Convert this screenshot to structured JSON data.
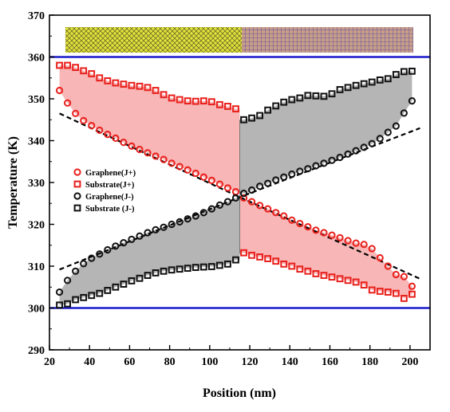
{
  "chart_data": {
    "type": "scatter",
    "xlabel": "Position (nm)",
    "ylabel": "Temperature (K)",
    "xlim": [
      20,
      210
    ],
    "ylim": [
      290,
      370
    ],
    "xticks": [
      20,
      40,
      60,
      80,
      100,
      120,
      140,
      160,
      180,
      200
    ],
    "yticks": [
      290,
      300,
      310,
      320,
      330,
      340,
      350,
      360,
      370
    ],
    "interface_x": 115,
    "reservoir_lines": {
      "hot": 360,
      "cold": 300,
      "color": "#1a1acc"
    },
    "legend_position": "center-left",
    "series": [
      {
        "name": "Graphene(J+)",
        "marker": "circle",
        "color": "#e8201c",
        "x": [
          25,
          29,
          33,
          37,
          41,
          45,
          49,
          53,
          57,
          61,
          65,
          69,
          73,
          77,
          81,
          85,
          89,
          93,
          97,
          101,
          105,
          109,
          113,
          117,
          121,
          125,
          129,
          133,
          137,
          141,
          145,
          149,
          153,
          157,
          161,
          165,
          169,
          173,
          177,
          181,
          185,
          189,
          193,
          197,
          201
        ],
        "y": [
          352,
          349,
          346.5,
          344.8,
          343.6,
          342.5,
          341.5,
          340.6,
          339.6,
          338.7,
          337.9,
          337.1,
          336.3,
          335.5,
          334.6,
          333.8,
          333,
          332.2,
          331.3,
          330.5,
          329.6,
          328.7,
          327.8,
          326.3,
          325.4,
          324.5,
          323.7,
          322.8,
          322,
          321,
          320.2,
          319.4,
          318.6,
          318,
          317.4,
          316.8,
          316.1,
          315.5,
          315.2,
          314.2,
          312,
          310,
          308,
          307.5,
          305.2
        ]
      },
      {
        "name": "Substrate(J+)",
        "marker": "square",
        "color": "#e8201c",
        "x": [
          25,
          29,
          33,
          37,
          41,
          45,
          49,
          53,
          57,
          61,
          65,
          69,
          73,
          77,
          81,
          85,
          89,
          93,
          97,
          101,
          105,
          109,
          113,
          117,
          121,
          125,
          129,
          133,
          137,
          141,
          145,
          149,
          153,
          157,
          161,
          165,
          169,
          173,
          177,
          181,
          185,
          189,
          193,
          197,
          201
        ],
        "y": [
          358,
          358,
          357.5,
          356.7,
          356,
          355,
          354.3,
          353.8,
          353.5,
          353.2,
          353,
          352.7,
          352,
          351,
          350.2,
          349.8,
          349.5,
          349.4,
          349.5,
          349.3,
          348.6,
          348.2,
          347.6,
          313.2,
          312.6,
          312.2,
          311.8,
          311.2,
          310.5,
          310,
          309.3,
          308.8,
          308.2,
          307.8,
          307.4,
          307,
          306.6,
          306.2,
          305.5,
          304.3,
          304,
          303.8,
          303.5,
          302.3,
          303.3
        ]
      },
      {
        "name": "Graphene(J-)",
        "marker": "circle",
        "color": "#111111",
        "x": [
          25,
          29,
          33,
          37,
          41,
          45,
          49,
          53,
          57,
          61,
          65,
          69,
          73,
          77,
          81,
          85,
          89,
          93,
          97,
          101,
          105,
          109,
          113,
          117,
          121,
          125,
          129,
          133,
          137,
          141,
          145,
          149,
          153,
          157,
          161,
          165,
          169,
          173,
          177,
          181,
          185,
          189,
          193,
          197,
          201
        ],
        "y": [
          303.8,
          306.6,
          308.8,
          310.6,
          311.9,
          312.9,
          313.9,
          314.8,
          315.6,
          316.4,
          317.2,
          318,
          318.7,
          319.3,
          320,
          320.6,
          321.3,
          322,
          322.8,
          323.7,
          324.6,
          325.4,
          326.3,
          327.4,
          328.2,
          329.1,
          329.8,
          330.6,
          331.3,
          332,
          332.7,
          333.3,
          334,
          334.6,
          335.3,
          336,
          336.8,
          337.6,
          338.4,
          339.3,
          340.5,
          342,
          343.5,
          346.6,
          349.5
        ]
      },
      {
        "name": "Substrate (J-)",
        "marker": "square",
        "color": "#111111",
        "x": [
          25,
          29,
          33,
          37,
          41,
          45,
          49,
          53,
          57,
          61,
          65,
          69,
          73,
          77,
          81,
          85,
          89,
          93,
          97,
          101,
          105,
          109,
          113,
          117,
          121,
          125,
          129,
          133,
          137,
          141,
          145,
          149,
          153,
          157,
          161,
          165,
          169,
          173,
          177,
          181,
          185,
          189,
          193,
          197,
          201
        ],
        "y": [
          300.7,
          301,
          302,
          302.5,
          303,
          303.5,
          304.2,
          305,
          305.7,
          306.5,
          307.1,
          307.8,
          308.4,
          308.8,
          309.1,
          309.3,
          309.5,
          309.7,
          309.8,
          309.9,
          310.2,
          310.5,
          311.5,
          345,
          345.4,
          346,
          347.3,
          348.3,
          349.2,
          349.8,
          350.2,
          350.8,
          350.7,
          350.6,
          351.2,
          352.2,
          352.7,
          353.2,
          353.6,
          354,
          354.5,
          354.8,
          355.8,
          356.5,
          356.6
        ]
      }
    ],
    "fit_lines": [
      {
        "color": "#000000",
        "x": [
          25,
          115,
          205
        ],
        "y": [
          346.5,
          326.5,
          307
        ]
      },
      {
        "color": "#000000",
        "x": [
          25,
          115,
          205
        ],
        "y": [
          309.2,
          326.5,
          343
        ]
      }
    ],
    "shaded_regions": [
      {
        "color": "#f7a9a9",
        "upper": "Substrate(J+)",
        "lower": "Graphene(J+)",
        "x_range": [
          25,
          115
        ]
      },
      {
        "color": "#a8a8a8",
        "upper": "Graphene(J-)",
        "lower": "Substrate (J-)",
        "x_range": [
          25,
          115
        ]
      },
      {
        "color": "#a8a8a8",
        "upper": "Substrate (J-)",
        "lower": "Graphene(J-)",
        "x_range": [
          115,
          201
        ]
      },
      {
        "color": "#f7a9a9",
        "upper": "Graphene(J+)",
        "lower": "Substrate(J+)",
        "x_range": [
          115,
          201
        ]
      }
    ]
  },
  "inset": {
    "left_color": "#e2e23a",
    "right_color": "#c8a088"
  }
}
